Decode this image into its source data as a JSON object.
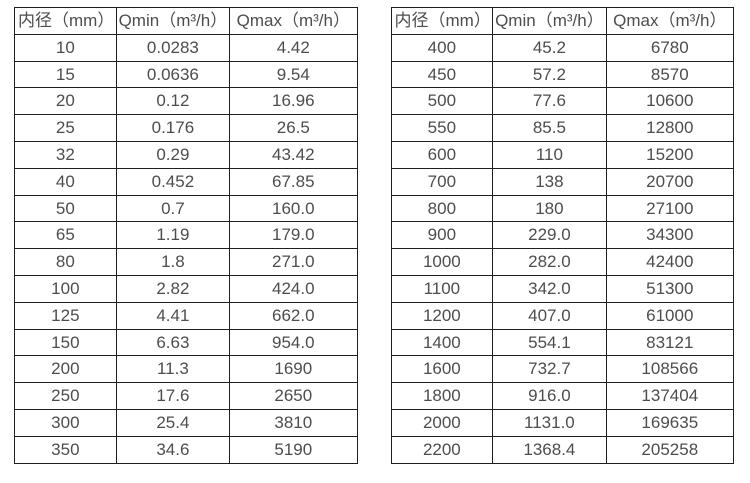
{
  "colors": {
    "background": "#ffffff",
    "table_border": "#1f1f1f",
    "text": "#4d4d4d"
  },
  "tables": [
    {
      "name": "small-diameter-flow-table",
      "headers": [
        "内径（mm）",
        "Qmin（m³/h）",
        "Qmax（m³/h）"
      ],
      "rows": [
        [
          "10",
          "0.0283",
          "4.42"
        ],
        [
          "15",
          "0.0636",
          "9.54"
        ],
        [
          "20",
          "0.12",
          "16.96"
        ],
        [
          "25",
          "0.176",
          "26.5"
        ],
        [
          "32",
          "0.29",
          "43.42"
        ],
        [
          "40",
          "0.452",
          "67.85"
        ],
        [
          "50",
          "0.7",
          "160.0"
        ],
        [
          "65",
          "1.19",
          "179.0"
        ],
        [
          "80",
          "1.8",
          "271.0"
        ],
        [
          "100",
          "2.82",
          "424.0"
        ],
        [
          "125",
          "4.41",
          "662.0"
        ],
        [
          "150",
          "6.63",
          "954.0"
        ],
        [
          "200",
          "11.3",
          "1690"
        ],
        [
          "250",
          "17.6",
          "2650"
        ],
        [
          "300",
          "25.4",
          "3810"
        ],
        [
          "350",
          "34.6",
          "5190"
        ]
      ]
    },
    {
      "name": "large-diameter-flow-table",
      "headers": [
        "内径（mm）",
        "Qmin（m³/h）",
        "Qmax（m³/h）"
      ],
      "rows": [
        [
          "400",
          "45.2",
          "6780"
        ],
        [
          "450",
          "57.2",
          "8570"
        ],
        [
          "500",
          "77.6",
          "10600"
        ],
        [
          "550",
          "85.5",
          "12800"
        ],
        [
          "600",
          "110",
          "15200"
        ],
        [
          "700",
          "138",
          "20700"
        ],
        [
          "800",
          "180",
          "27100"
        ],
        [
          "900",
          "229.0",
          "34300"
        ],
        [
          "1000",
          "282.0",
          "42400"
        ],
        [
          "1100",
          "342.0",
          "51300"
        ],
        [
          "1200",
          "407.0",
          "61000"
        ],
        [
          "1400",
          "554.1",
          "83121"
        ],
        [
          "1600",
          "732.7",
          "108566"
        ],
        [
          "1800",
          "916.0",
          "137404"
        ],
        [
          "2000",
          "1131.0",
          "169635"
        ],
        [
          "2200",
          "1368.4",
          "205258"
        ]
      ]
    }
  ]
}
